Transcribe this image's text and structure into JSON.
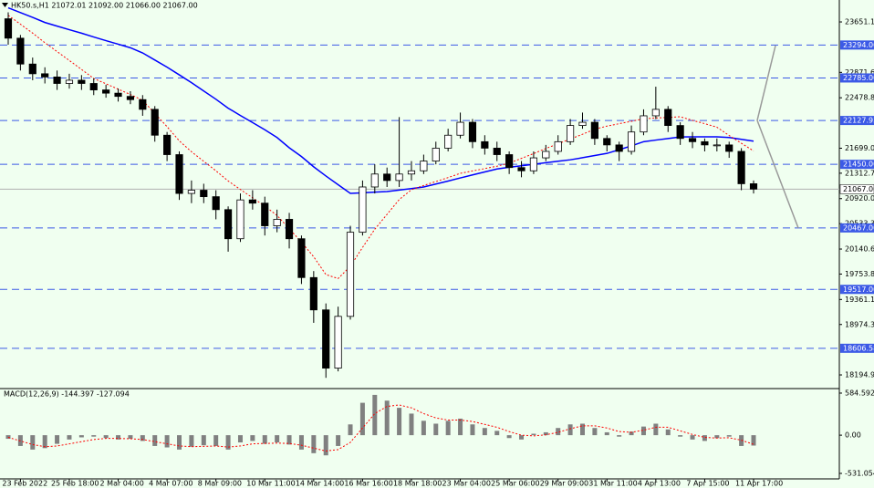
{
  "chart_data": [
    {
      "type": "candlestick",
      "title": "HK50.s,H1  21072.01 21092.00 21066.00 21067.00",
      "categories": [
        null,
        "23 Feb 2022",
        null,
        null,
        null,
        "25 Feb 18:00",
        null,
        null,
        null,
        "2 Mar 04:00",
        null,
        null,
        null,
        "4 Mar 07:00",
        null,
        null,
        null,
        "8 Mar 09:00",
        null,
        null,
        null,
        "10 Mar 11:00",
        null,
        null,
        null,
        "14 Mar 14:00",
        null,
        null,
        null,
        "16 Mar 16:00",
        null,
        null,
        null,
        "18 Mar 18:00",
        null,
        null,
        null,
        "23 Mar 04:00",
        null,
        null,
        null,
        "25 Mar 06:00",
        null,
        null,
        null,
        "29 Mar 09:00",
        null,
        null,
        null,
        "31 Mar 11:00",
        null,
        null,
        null,
        "4 Apr 13:00",
        null,
        null,
        null,
        "7 Apr 15:00",
        null,
        null,
        null,
        "11 Apr 17:00"
      ],
      "open": [
        23700,
        23400,
        23000,
        22850,
        22800,
        22700,
        22750,
        22700,
        22600,
        22550,
        22500,
        22450,
        22300,
        21900,
        21600,
        21000,
        21050,
        20950,
        20750,
        20300,
        20900,
        20850,
        20500,
        20600,
        20300,
        19700,
        19200,
        18300,
        19100,
        20400,
        21100,
        21300,
        21200,
        21300,
        21350,
        21500,
        21700,
        21900,
        22100,
        21800,
        21700,
        21600,
        21400,
        21350,
        21550,
        21650,
        21800,
        22050,
        22100,
        21850,
        21750,
        21650,
        21950,
        22200,
        22300,
        22050,
        21850,
        21800,
        21750,
        21750,
        21650,
        21150
      ],
      "high": [
        23800,
        23450,
        23100,
        22950,
        22900,
        22850,
        22830,
        22780,
        22680,
        22620,
        22580,
        22520,
        22350,
        21950,
        21650,
        21200,
        21150,
        21050,
        20800,
        21000,
        21050,
        20950,
        20750,
        20700,
        20350,
        19800,
        19300,
        19250,
        20500,
        21200,
        21450,
        21400,
        22180,
        21500,
        21600,
        21800,
        22000,
        22250,
        22150,
        21900,
        21800,
        21650,
        21500,
        21650,
        21750,
        21900,
        22150,
        22250,
        22150,
        21900,
        21800,
        22050,
        22300,
        22650,
        22350,
        22100,
        21950,
        21850,
        21850,
        21800,
        21700,
        21200
      ],
      "low": [
        23300,
        22900,
        22750,
        22700,
        22600,
        22620,
        22600,
        22520,
        22480,
        22420,
        22380,
        22200,
        21800,
        21500,
        20900,
        20850,
        20850,
        20600,
        20100,
        20250,
        20750,
        20350,
        20400,
        20150,
        19600,
        19000,
        18150,
        18250,
        19050,
        20350,
        21000,
        21100,
        21100,
        21200,
        21300,
        21450,
        21650,
        21850,
        21700,
        21600,
        21500,
        21300,
        21250,
        21300,
        21500,
        21600,
        21750,
        22000,
        21750,
        21650,
        21500,
        21600,
        21900,
        22150,
        21950,
        21750,
        21700,
        21650,
        21650,
        21550,
        21050,
        21000
      ],
      "close": [
        23400,
        23000,
        22850,
        22800,
        22700,
        22750,
        22700,
        22600,
        22550,
        22500,
        22450,
        22300,
        21900,
        21600,
        21000,
        21050,
        20950,
        20750,
        20300,
        20900,
        20850,
        20500,
        20600,
        20300,
        19700,
        19200,
        18300,
        19100,
        20400,
        21100,
        21300,
        21200,
        21300,
        21350,
        21500,
        21700,
        21900,
        22100,
        21800,
        21700,
        21600,
        21400,
        21350,
        21550,
        21650,
        21800,
        22050,
        22100,
        21850,
        21750,
        21650,
        21950,
        22200,
        22300,
        22050,
        21850,
        21800,
        21750,
        21750,
        21650,
        21150,
        21067
      ],
      "up_color": "#ffffff",
      "down_color": "#000000",
      "lines": [
        {
          "color": "#0000ff",
          "dashed": false,
          "values": [
            23870,
            23795,
            23722,
            23643,
            23586,
            23531,
            23477,
            23418,
            23362,
            23307,
            23252,
            23172,
            23062,
            22952,
            22833,
            22712,
            22584,
            22456,
            22318,
            22205,
            22095,
            21985,
            21864,
            21706,
            21570,
            21412,
            21270,
            21135,
            21001,
            21010,
            21020,
            21029,
            21052,
            21075,
            21100,
            21145,
            21191,
            21240,
            21286,
            21332,
            21378,
            21404,
            21427,
            21450,
            21475,
            21498,
            21520,
            21552,
            21586,
            21619,
            21676,
            21735,
            21800,
            21825,
            21848,
            21873,
            21875,
            21875,
            21875,
            21864,
            21836,
            21808
          ]
        },
        {
          "color": "#ff0000",
          "dashed": true,
          "values": [
            23754,
            23616,
            23478,
            23330,
            23193,
            23055,
            22917,
            22777,
            22695,
            22612,
            22529,
            22440,
            22236,
            22032,
            21813,
            21644,
            21497,
            21350,
            21193,
            21061,
            20933,
            20804,
            20660,
            20454,
            20248,
            20021,
            19746,
            19685,
            19873,
            20166,
            20447,
            20676,
            20906,
            21057,
            21123,
            21184,
            21245,
            21311,
            21348,
            21384,
            21421,
            21469,
            21542,
            21616,
            21695,
            21768,
            21841,
            21915,
            21993,
            22041,
            22078,
            22115,
            22154,
            22167,
            22174,
            22185,
            22130,
            22079,
            22024,
            21896,
            21776,
            21657
          ]
        }
      ],
      "levels": [
        {
          "value": 23294,
          "label": "23294.00"
        },
        {
          "value": 22785,
          "label": "22785.00"
        },
        {
          "value": 22127.93,
          "label": "22127.93"
        },
        {
          "value": 21450,
          "label": "21450.00"
        },
        {
          "value": 20467,
          "label": "20467.00"
        },
        {
          "value": 19517,
          "label": "19517.00"
        },
        18606.58
      ],
      "level_color": "#3c5ae6",
      "current_price": {
        "value": 21067,
        "label": "21067.00"
      },
      "ylim": [
        17998,
        23990
      ],
      "yticks": [
        {
          "value": 23651.1,
          "label": "23651.10"
        },
        22871.65,
        22478.85,
        21699.05,
        21312.75,
        {
          "value": 20920,
          "label": "20920.00"
        },
        {
          "value": 20533.3,
          "label": "20533.30"
        },
        {
          "value": 20140.6,
          "label": "20140.60"
        },
        19753.85,
        19361.15,
        {
          "value": 18974.3,
          "label": "18974.30"
        },
        18194.95
      ]
    },
    {
      "type": "macd",
      "title": "MACD(12,26,9) -144.397 -127.094",
      "values": [
        -50,
        -150,
        -200,
        -180,
        -120,
        -60,
        -30,
        -20,
        -40,
        -60,
        -50,
        -80,
        -150,
        -170,
        -200,
        -160,
        -140,
        -150,
        -200,
        -100,
        -80,
        -120,
        -100,
        -130,
        -200,
        -250,
        -280,
        -150,
        150,
        450,
        560,
        480,
        380,
        300,
        200,
        160,
        200,
        230,
        150,
        100,
        60,
        -40,
        -60,
        20,
        40,
        100,
        150,
        160,
        100,
        40,
        -20,
        50,
        120,
        160,
        80,
        -20,
        -60,
        -80,
        -40,
        -20,
        -150,
        -144.397
      ],
      "signal": [
        -30,
        -80,
        -130,
        -160,
        -150,
        -120,
        -90,
        -60,
        -45,
        -45,
        -50,
        -60,
        -90,
        -120,
        -150,
        -160,
        -155,
        -150,
        -165,
        -150,
        -120,
        -115,
        -110,
        -115,
        -140,
        -180,
        -220,
        -200,
        -100,
        100,
        300,
        400,
        420,
        380,
        300,
        240,
        210,
        210,
        190,
        150,
        110,
        50,
        0,
        -10,
        5,
        40,
        90,
        130,
        130,
        100,
        50,
        40,
        70,
        110,
        110,
        60,
        10,
        -30,
        -40,
        -35,
        -70,
        -127.094
      ],
      "color": "#808080",
      "signal_color": "#ff0000",
      "ylim": [
        -607,
        635
      ],
      "yticks": [
        584.592,
        {
          "value": 0,
          "label": "0.00"
        },
        -531.054
      ]
    }
  ]
}
